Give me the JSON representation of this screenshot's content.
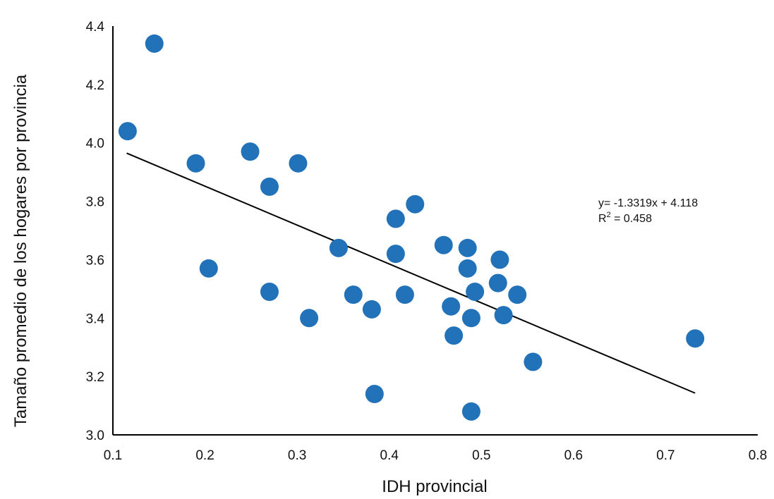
{
  "chart_data": {
    "type": "scatter",
    "xlabel": "IDH provincial",
    "ylabel": "Tamaño promedio de los hogares por provincia",
    "xlim": [
      0.1,
      0.8
    ],
    "ylim": [
      3.0,
      4.4
    ],
    "xticks": [
      0.1,
      0.2,
      0.3,
      0.4,
      0.5,
      0.6,
      0.7,
      0.8
    ],
    "yticks": [
      3.0,
      3.2,
      3.4,
      3.6,
      3.8,
      4.0,
      4.2,
      4.4
    ],
    "xtick_labels": [
      "0.1",
      "0.2",
      "0.3",
      "0.4",
      "0.5",
      "0.6",
      "0.7",
      "0.8"
    ],
    "ytick_labels": [
      "3.0",
      "3.2",
      "3.4",
      "3.6",
      "3.8",
      "4.0",
      "4.2",
      "4.4"
    ],
    "grid": false,
    "point_color": "#2272b9",
    "trendline": {
      "slope": -1.3319,
      "intercept": 4.118,
      "x_range": [
        0.115,
        0.732
      ],
      "color": "#000000"
    },
    "annotation": {
      "equation": "y= -1.3319x + 4.118",
      "r2_prefix": "R",
      "r2_sup": "2",
      "r2_value": " = 0.458"
    },
    "points": [
      {
        "x": 0.145,
        "y": 4.34
      },
      {
        "x": 0.116,
        "y": 4.04
      },
      {
        "x": 0.19,
        "y": 3.93
      },
      {
        "x": 0.249,
        "y": 3.97
      },
      {
        "x": 0.301,
        "y": 3.93
      },
      {
        "x": 0.27,
        "y": 3.85
      },
      {
        "x": 0.204,
        "y": 3.57
      },
      {
        "x": 0.27,
        "y": 3.49
      },
      {
        "x": 0.313,
        "y": 3.4
      },
      {
        "x": 0.345,
        "y": 3.64
      },
      {
        "x": 0.361,
        "y": 3.48
      },
      {
        "x": 0.381,
        "y": 3.43
      },
      {
        "x": 0.407,
        "y": 3.74
      },
      {
        "x": 0.428,
        "y": 3.79
      },
      {
        "x": 0.407,
        "y": 3.62
      },
      {
        "x": 0.417,
        "y": 3.48
      },
      {
        "x": 0.384,
        "y": 3.14
      },
      {
        "x": 0.459,
        "y": 3.65
      },
      {
        "x": 0.485,
        "y": 3.64
      },
      {
        "x": 0.485,
        "y": 3.57
      },
      {
        "x": 0.467,
        "y": 3.44
      },
      {
        "x": 0.47,
        "y": 3.34
      },
      {
        "x": 0.489,
        "y": 3.4
      },
      {
        "x": 0.493,
        "y": 3.49
      },
      {
        "x": 0.52,
        "y": 3.6
      },
      {
        "x": 0.518,
        "y": 3.52
      },
      {
        "x": 0.539,
        "y": 3.48
      },
      {
        "x": 0.524,
        "y": 3.41
      },
      {
        "x": 0.556,
        "y": 3.25
      },
      {
        "x": 0.489,
        "y": 3.08
      },
      {
        "x": 0.732,
        "y": 3.33
      }
    ]
  }
}
